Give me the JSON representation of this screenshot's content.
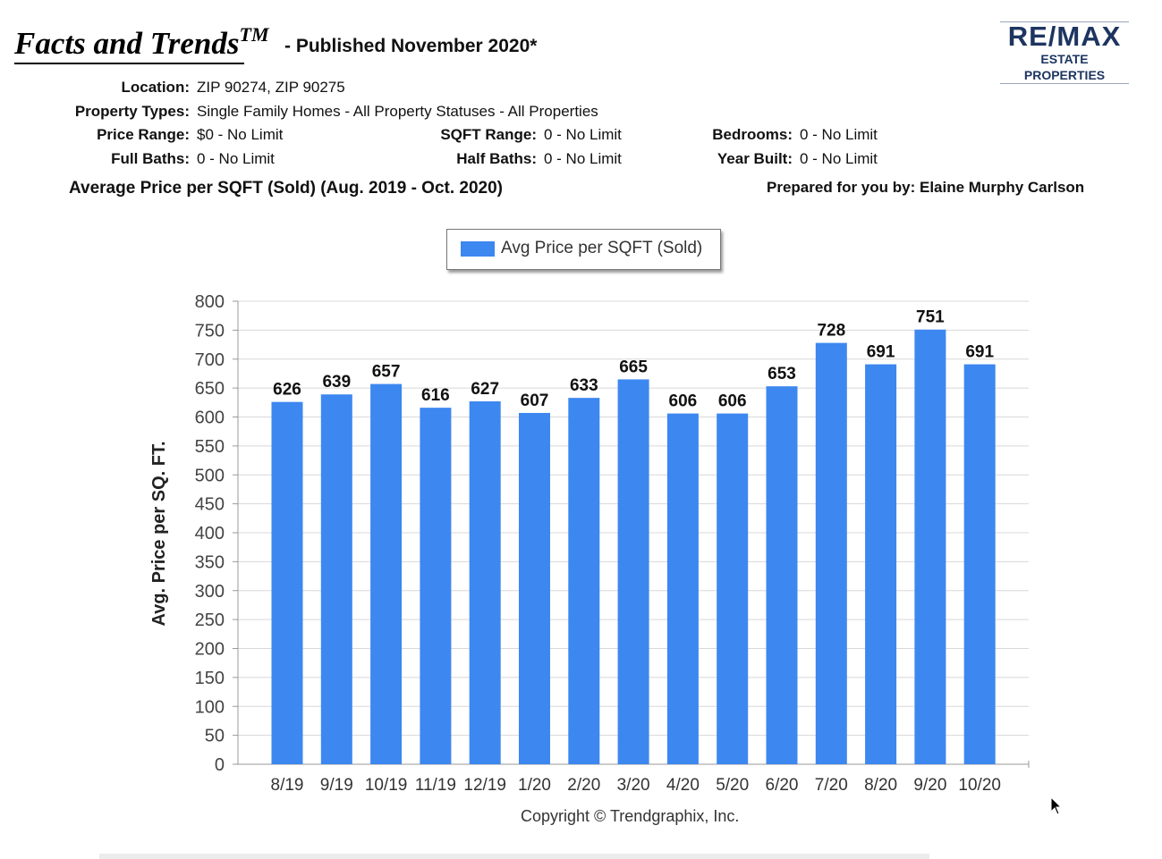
{
  "header": {
    "title": "Facts and Trends",
    "title_tm": "TM",
    "subtitle": "- Published November 2020*"
  },
  "logo": {
    "brand": "RE/MAX",
    "sub": "ESTATE PROPERTIES",
    "color": "#1d3560"
  },
  "meta": {
    "location_label": "Location:",
    "location": "ZIP 90274, ZIP 90275",
    "property_types_label": "Property Types:",
    "property_types": "Single Family Homes - All Property Statuses - All Properties",
    "price_range_label": "Price Range:",
    "price_range": "$0 - No Limit",
    "sqft_range_label": "SQFT Range:",
    "sqft_range": "0 - No Limit",
    "bedrooms_label": "Bedrooms:",
    "bedrooms": "0 - No Limit",
    "full_baths_label": "Full Baths:",
    "full_baths": "0 - No Limit",
    "half_baths_label": "Half Baths:",
    "half_baths": "0 - No Limit",
    "year_built_label": "Year Built:",
    "year_built": "0 - No Limit"
  },
  "section_title": "Average Price per SQFT (Sold) (Aug. 2019 - Oct. 2020)",
  "prepared_by": "Prepared for you by: Elaine Murphy Carlson",
  "copyright": "Copyright © Trendgraphix, Inc.",
  "chart_data": {
    "type": "bar",
    "title": "",
    "xlabel": "",
    "ylabel": "Avg. Price per SQ. FT.",
    "categories": [
      "8/19",
      "9/19",
      "10/19",
      "11/19",
      "12/19",
      "1/20",
      "2/20",
      "3/20",
      "4/20",
      "5/20",
      "6/20",
      "7/20",
      "8/20",
      "9/20",
      "10/20"
    ],
    "series": [
      {
        "name": "Avg Price per SQFT (Sold)",
        "values": [
          626,
          639,
          657,
          616,
          627,
          607,
          633,
          665,
          606,
          606,
          653,
          728,
          691,
          751,
          691
        ],
        "color": "#3d87f0"
      }
    ],
    "ylim": [
      0,
      800
    ],
    "yticks": [
      0,
      50,
      100,
      150,
      200,
      250,
      300,
      350,
      400,
      450,
      500,
      550,
      600,
      650,
      700,
      750,
      800
    ],
    "grid": true,
    "legend_position": "top-center",
    "data_labels": true
  }
}
